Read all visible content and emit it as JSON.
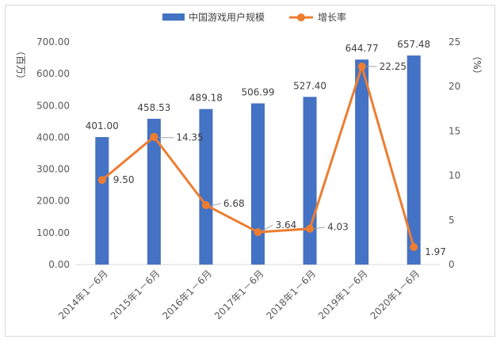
{
  "chart_data": {
    "type": "bar",
    "categories": [
      "2014年1－6月",
      "2015年1－6月",
      "2016年1－6月",
      "2017年1－6月",
      "2018年1－6月",
      "2019年1－6月",
      "2020年1－6月"
    ],
    "series": [
      {
        "name": "中国游戏用户规模",
        "type": "bar",
        "axis": "left",
        "color": "#4472C4",
        "values": [
          401.0,
          458.53,
          489.18,
          506.99,
          527.4,
          644.77,
          657.48
        ],
        "labels": [
          "401.00",
          "458.53",
          "489.18",
          "506.99",
          "527.40",
          "644.77",
          "657.48"
        ]
      },
      {
        "name": "增长率",
        "type": "line",
        "axis": "right",
        "color": "#ED7D31",
        "values": [
          9.5,
          14.35,
          6.68,
          3.64,
          4.03,
          22.25,
          1.97
        ],
        "labels": [
          "9.50",
          "14.35",
          "6.68",
          "3.64",
          "4.03",
          "22.25",
          "1.97"
        ]
      }
    ],
    "y_left": {
      "label": "（百万）",
      "ylim": [
        0,
        700
      ],
      "ticks": [
        "0.00",
        "100.00",
        "200.00",
        "300.00",
        "400.00",
        "500.00",
        "600.00",
        "700.00"
      ]
    },
    "y_right": {
      "label": "（%）",
      "ylim": [
        0,
        25
      ],
      "ticks": [
        "0",
        "5",
        "10",
        "15",
        "20",
        "25"
      ]
    },
    "legend": "top-center",
    "grid": false
  }
}
